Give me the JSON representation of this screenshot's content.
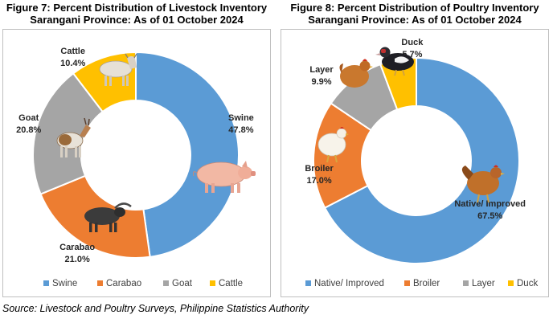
{
  "charts": [
    {
      "title_line1": "Figure 7: Percent Distribution of Livestock Inventory",
      "title_line2": "Sarangani Province: As of 01 October 2024"
    },
    {
      "title_line1": "Figure 8: Percent Distribution of Poultry Inventory",
      "title_line2": "Sarangani Province: As of 01 October 2024"
    }
  ],
  "source": "Source: Livestock and Poultry Surveys, Philippine Statistics Authority",
  "chart_data": [
    {
      "type": "pie",
      "variant": "donut",
      "title": "Figure 7: Percent Distribution of Livestock Inventory Sarangani Province: As of 01 October 2024",
      "categories": [
        "Swine",
        "Carabao",
        "Goat",
        "Cattle"
      ],
      "values": [
        47.8,
        21.0,
        20.8,
        10.4
      ],
      "value_labels": [
        "47.8%",
        "21.0%",
        "20.8%",
        "10.4%"
      ],
      "colors": [
        "#5b9bd5",
        "#ed7d31",
        "#a5a5a5",
        "#ffc000"
      ],
      "icons": [
        "pig-icon",
        "water-buffalo-icon",
        "goat-icon",
        "cow-icon"
      ],
      "legend_position": "bottom"
    },
    {
      "type": "pie",
      "variant": "donut",
      "title": "Figure 8: Percent Distribution of Poultry Inventory Sarangani Province: As of 01 October 2024",
      "categories": [
        "Native/ Improved",
        "Broiler",
        "Layer",
        "Duck"
      ],
      "values": [
        67.5,
        17.0,
        9.9,
        5.7
      ],
      "value_labels": [
        "67.5%",
        "17.0%",
        "9.9%",
        "5.7%"
      ],
      "colors": [
        "#5b9bd5",
        "#ed7d31",
        "#a5a5a5",
        "#ffc000"
      ],
      "icons": [
        "hen-icon",
        "white-chicken-icon",
        "brown-chicken-icon",
        "duck-icon"
      ],
      "legend_position": "bottom"
    }
  ]
}
